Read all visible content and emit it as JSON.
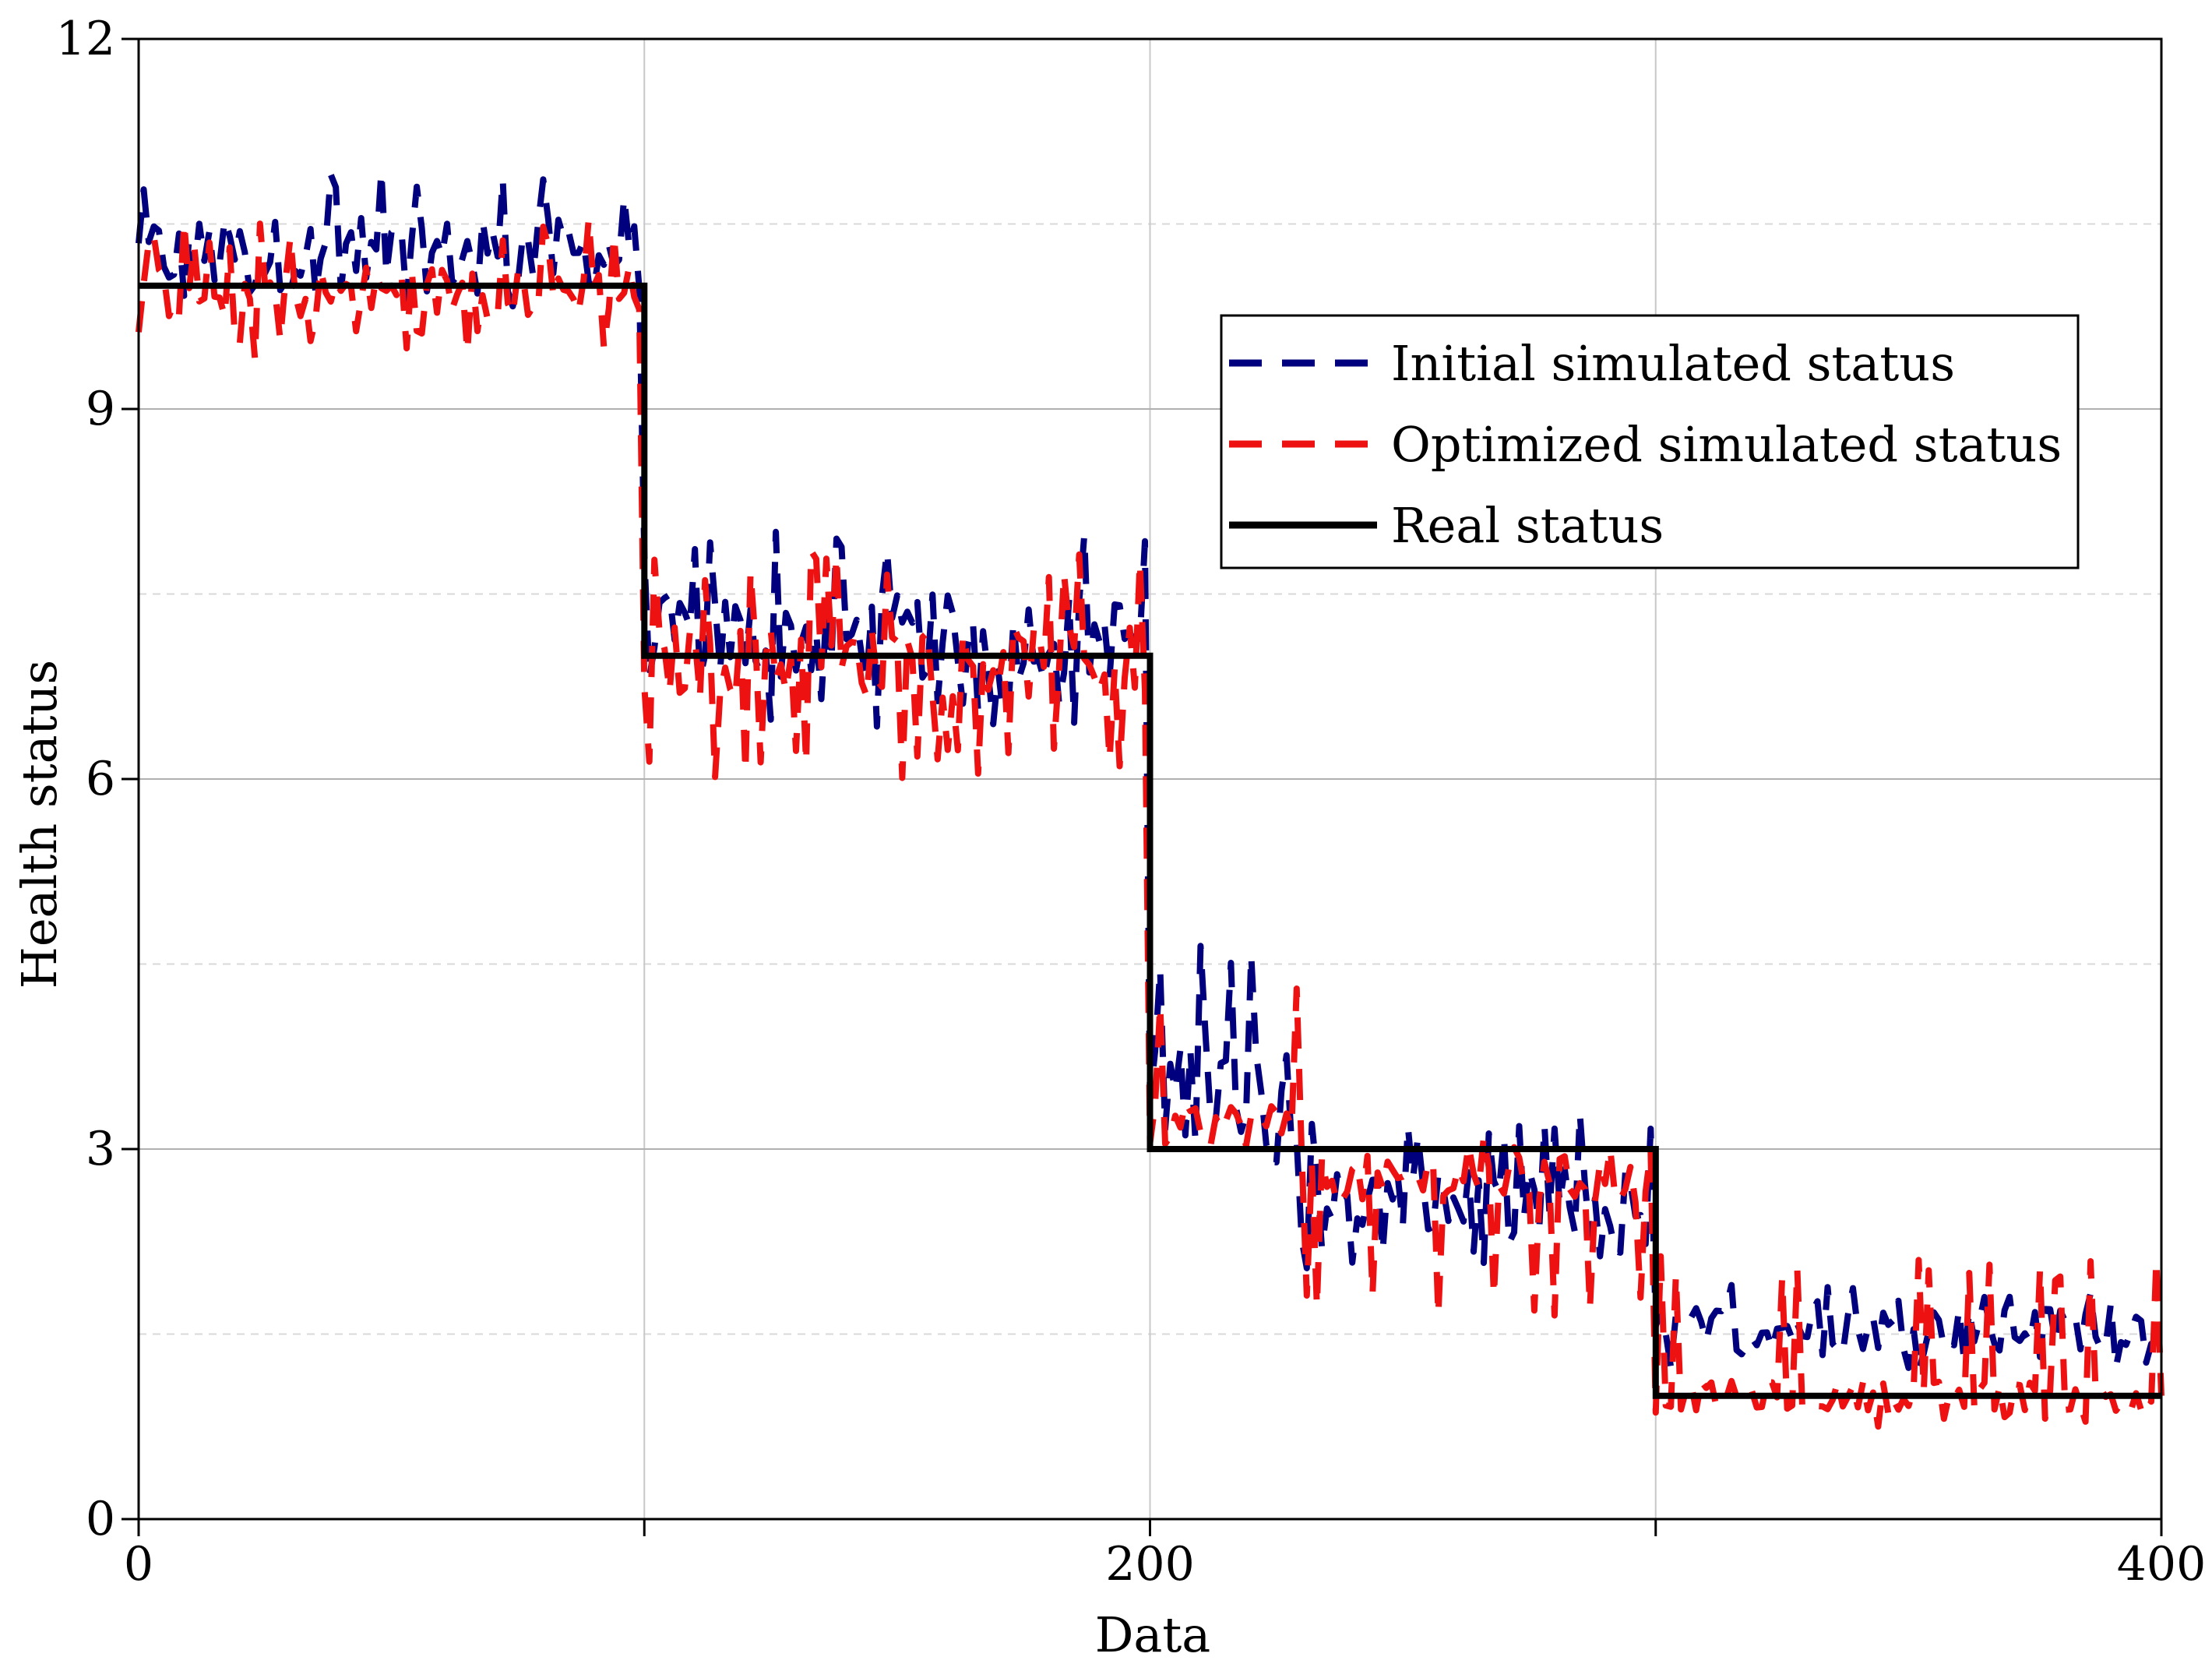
{
  "chart_data": {
    "type": "line",
    "title": "",
    "xlabel": "Data",
    "ylabel": "Health status",
    "xlim": [
      0,
      400
    ],
    "ylim": [
      0,
      12
    ],
    "x_ticks": [
      0,
      100,
      200,
      300,
      400
    ],
    "x_tick_labels": [
      "0",
      "",
      "200",
      "",
      "400"
    ],
    "y_ticks": [
      0,
      3,
      6,
      9,
      12
    ],
    "y_tick_labels": [
      "0",
      "3",
      "6",
      "9",
      "12"
    ],
    "y_minor_gridlines": [
      1.5,
      4.5,
      7.5,
      10.5
    ],
    "grid": true,
    "legend_position": "upper-right",
    "series": [
      {
        "name": "Initial simulated status",
        "color": "#00007f",
        "style": "dashed",
        "segments": [
          {
            "x_start": 0,
            "x_end": 100,
            "base": 10.25,
            "amplitude": 0.3,
            "spike_min": 9.8,
            "spike_max": 10.95
          },
          {
            "x_start": 100,
            "x_end": 200,
            "base": 7.15,
            "amplitude": 0.35,
            "spike_min": 6.4,
            "spike_max": 8.05
          },
          {
            "x_start": 200,
            "x_end": 230,
            "base": 3.5,
            "amplitude": 0.45,
            "spike_min": 2.8,
            "spike_max": 4.7
          },
          {
            "x_start": 230,
            "x_end": 300,
            "base": 2.55,
            "amplitude": 0.3,
            "spike_min": 2.0,
            "spike_max": 3.35
          },
          {
            "x_start": 300,
            "x_end": 400,
            "base": 1.55,
            "amplitude": 0.18,
            "spike_min": 1.2,
            "spike_max": 1.9
          }
        ]
      },
      {
        "name": "Optimized simulated status",
        "color": "#ee1111",
        "style": "dashed",
        "segments": [
          {
            "x_start": 0,
            "x_end": 100,
            "base": 9.95,
            "amplitude": 0.22,
            "spike_min": 9.4,
            "spike_max": 10.55
          },
          {
            "x_start": 100,
            "x_end": 200,
            "base": 6.95,
            "amplitude": 0.3,
            "spike_min": 6.0,
            "spike_max": 7.85
          },
          {
            "x_start": 200,
            "x_end": 230,
            "base": 3.2,
            "amplitude": 0.18,
            "spike_min": 2.95,
            "spike_max": 4.35
          },
          {
            "x_start": 230,
            "x_end": 300,
            "base": 2.75,
            "amplitude": 0.2,
            "spike_min": 1.65,
            "spike_max": 3.1
          },
          {
            "x_start": 300,
            "x_end": 400,
            "base": 1.0,
            "amplitude": 0.12,
            "spike_min": 0.75,
            "spike_max": 2.15
          }
        ]
      },
      {
        "name": "Real status",
        "color": "#000000",
        "style": "solid",
        "x": [
          0,
          100,
          100,
          200,
          200,
          300,
          300,
          400
        ],
        "y": [
          10,
          10,
          7,
          7,
          3,
          3,
          1,
          1
        ]
      }
    ]
  }
}
